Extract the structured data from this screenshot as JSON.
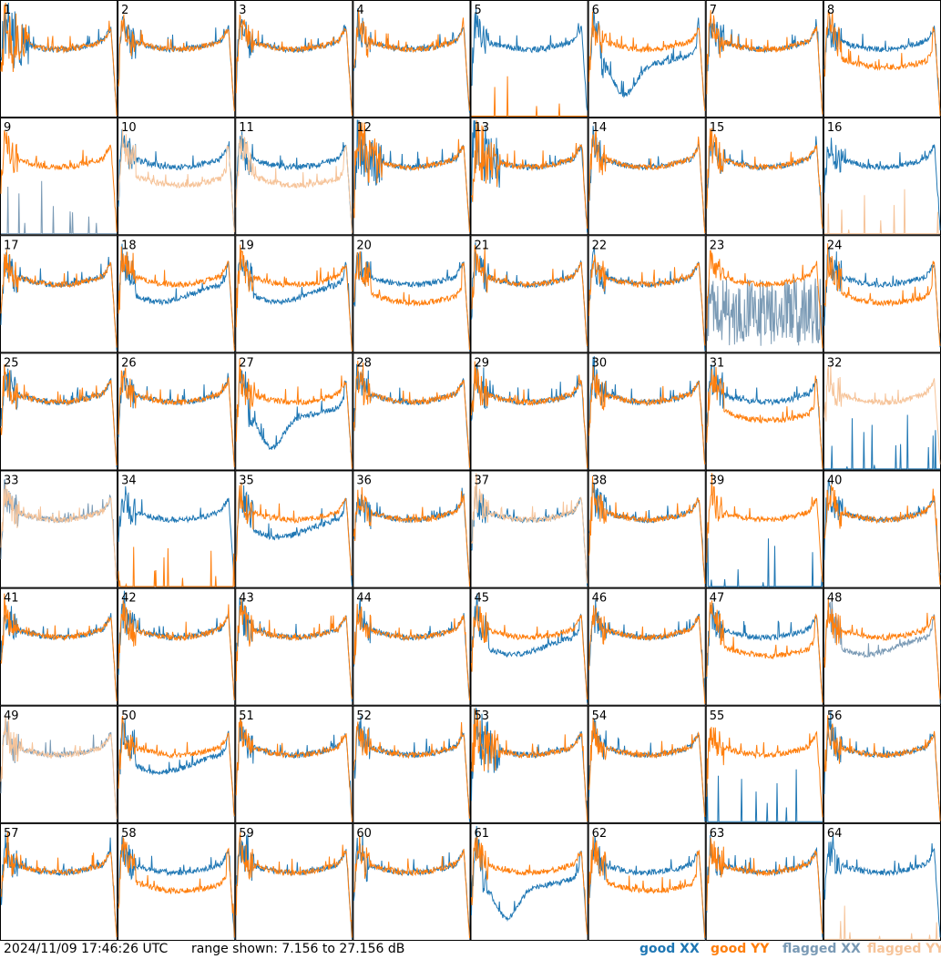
{
  "footer": {
    "timestamp": "2024/11/09 17:46:26 UTC",
    "range": "range shown: 7.156 to 27.156 dB"
  },
  "legend": {
    "good_xx": "good XX",
    "good_yy": "good YY",
    "flagged_xx": "flagged XX",
    "flagged_yy": "flagged YY"
  },
  "colors": {
    "good_xx": "#1f77b4",
    "good_yy": "#ff7f0e",
    "flagged_xx": "#7a9ab5",
    "flagged_yy": "#f6c49a"
  },
  "chart_data": {
    "type": "line",
    "description_units": "dB",
    "ylim": [
      7.156,
      27.156
    ],
    "panels": [
      {
        "label": "1",
        "xx": "good",
        "yy": "good",
        "shape": "ripple"
      },
      {
        "label": "2",
        "xx": "good",
        "yy": "good",
        "shape": "normal"
      },
      {
        "label": "3",
        "xx": "good",
        "yy": "good",
        "shape": "normal"
      },
      {
        "label": "4",
        "xx": "good",
        "yy": "good",
        "shape": "normal"
      },
      {
        "label": "5",
        "xx": "good",
        "yy": "good",
        "shape": "yy_dead"
      },
      {
        "label": "6",
        "xx": "good",
        "yy": "good",
        "shape": "xx_dip"
      },
      {
        "label": "7",
        "xx": "good",
        "yy": "good",
        "shape": "normal"
      },
      {
        "label": "8",
        "xx": "good",
        "yy": "good",
        "shape": "yy_low"
      },
      {
        "label": "9",
        "xx": "flagged",
        "yy": "good",
        "shape": "xx_dead"
      },
      {
        "label": "10",
        "xx": "good",
        "yy": "flagged",
        "shape": "yy_low"
      },
      {
        "label": "11",
        "xx": "good",
        "yy": "flagged",
        "shape": "yy_low"
      },
      {
        "label": "12",
        "xx": "good",
        "yy": "good",
        "shape": "ripple"
      },
      {
        "label": "13",
        "xx": "good",
        "yy": "good",
        "shape": "ripple"
      },
      {
        "label": "14",
        "xx": "good",
        "yy": "good",
        "shape": "normal"
      },
      {
        "label": "15",
        "xx": "good",
        "yy": "good",
        "shape": "normal"
      },
      {
        "label": "16",
        "xx": "good",
        "yy": "flagged",
        "shape": "yy_dead"
      },
      {
        "label": "17",
        "xx": "good",
        "yy": "good",
        "shape": "normal"
      },
      {
        "label": "18",
        "xx": "good",
        "yy": "good",
        "shape": "xx_low"
      },
      {
        "label": "19",
        "xx": "good",
        "yy": "good",
        "shape": "xx_low"
      },
      {
        "label": "20",
        "xx": "good",
        "yy": "good",
        "shape": "yy_low"
      },
      {
        "label": "21",
        "xx": "good",
        "yy": "good",
        "shape": "normal"
      },
      {
        "label": "22",
        "xx": "good",
        "yy": "good",
        "shape": "normal"
      },
      {
        "label": "23",
        "xx": "flagged",
        "yy": "good",
        "shape": "xx_noise"
      },
      {
        "label": "24",
        "xx": "good",
        "yy": "good",
        "shape": "yy_low"
      },
      {
        "label": "25",
        "xx": "good",
        "yy": "good",
        "shape": "normal"
      },
      {
        "label": "26",
        "xx": "good",
        "yy": "good",
        "shape": "normal"
      },
      {
        "label": "27",
        "xx": "good",
        "yy": "good",
        "shape": "xx_dip"
      },
      {
        "label": "28",
        "xx": "good",
        "yy": "good",
        "shape": "normal"
      },
      {
        "label": "29",
        "xx": "good",
        "yy": "good",
        "shape": "normal"
      },
      {
        "label": "30",
        "xx": "good",
        "yy": "good",
        "shape": "normal"
      },
      {
        "label": "31",
        "xx": "good",
        "yy": "good",
        "shape": "yy_low"
      },
      {
        "label": "32",
        "xx": "good",
        "yy": "flagged",
        "shape": "xx_dead"
      },
      {
        "label": "33",
        "xx": "flagged",
        "yy": "flagged",
        "shape": "normal"
      },
      {
        "label": "34",
        "xx": "good",
        "yy": "good",
        "shape": "yy_dead"
      },
      {
        "label": "35",
        "xx": "good",
        "yy": "good",
        "shape": "xx_low"
      },
      {
        "label": "36",
        "xx": "good",
        "yy": "good",
        "shape": "normal"
      },
      {
        "label": "37",
        "xx": "good",
        "yy": "flagged",
        "shape": "normal"
      },
      {
        "label": "38",
        "xx": "good",
        "yy": "good",
        "shape": "normal"
      },
      {
        "label": "39",
        "xx": "good",
        "yy": "good",
        "shape": "xx_dead"
      },
      {
        "label": "40",
        "xx": "good",
        "yy": "good",
        "shape": "normal"
      },
      {
        "label": "41",
        "xx": "good",
        "yy": "good",
        "shape": "normal"
      },
      {
        "label": "42",
        "xx": "good",
        "yy": "good",
        "shape": "normal"
      },
      {
        "label": "43",
        "xx": "good",
        "yy": "good",
        "shape": "normal"
      },
      {
        "label": "44",
        "xx": "good",
        "yy": "good",
        "shape": "normal"
      },
      {
        "label": "45",
        "xx": "good",
        "yy": "good",
        "shape": "xx_low"
      },
      {
        "label": "46",
        "xx": "good",
        "yy": "good",
        "shape": "normal"
      },
      {
        "label": "47",
        "xx": "good",
        "yy": "good",
        "shape": "yy_low"
      },
      {
        "label": "48",
        "xx": "flagged",
        "yy": "good",
        "shape": "xx_low"
      },
      {
        "label": "49",
        "xx": "flagged",
        "yy": "flagged",
        "shape": "normal"
      },
      {
        "label": "50",
        "xx": "good",
        "yy": "good",
        "shape": "xx_low"
      },
      {
        "label": "51",
        "xx": "good",
        "yy": "good",
        "shape": "normal"
      },
      {
        "label": "52",
        "xx": "good",
        "yy": "good",
        "shape": "normal"
      },
      {
        "label": "53",
        "xx": "good",
        "yy": "good",
        "shape": "ripple"
      },
      {
        "label": "54",
        "xx": "good",
        "yy": "good",
        "shape": "normal"
      },
      {
        "label": "55",
        "xx": "good",
        "yy": "good",
        "shape": "xx_dead"
      },
      {
        "label": "56",
        "xx": "good",
        "yy": "good",
        "shape": "normal"
      },
      {
        "label": "57",
        "xx": "good",
        "yy": "good",
        "shape": "normal"
      },
      {
        "label": "58",
        "xx": "good",
        "yy": "good",
        "shape": "yy_low"
      },
      {
        "label": "59",
        "xx": "good",
        "yy": "good",
        "shape": "normal"
      },
      {
        "label": "60",
        "xx": "good",
        "yy": "good",
        "shape": "normal"
      },
      {
        "label": "61",
        "xx": "good",
        "yy": "good",
        "shape": "xx_dip"
      },
      {
        "label": "62",
        "xx": "good",
        "yy": "good",
        "shape": "yy_low"
      },
      {
        "label": "63",
        "xx": "good",
        "yy": "good",
        "shape": "normal"
      },
      {
        "label": "64",
        "xx": "good",
        "yy": "flagged",
        "shape": "yy_dead"
      }
    ]
  }
}
